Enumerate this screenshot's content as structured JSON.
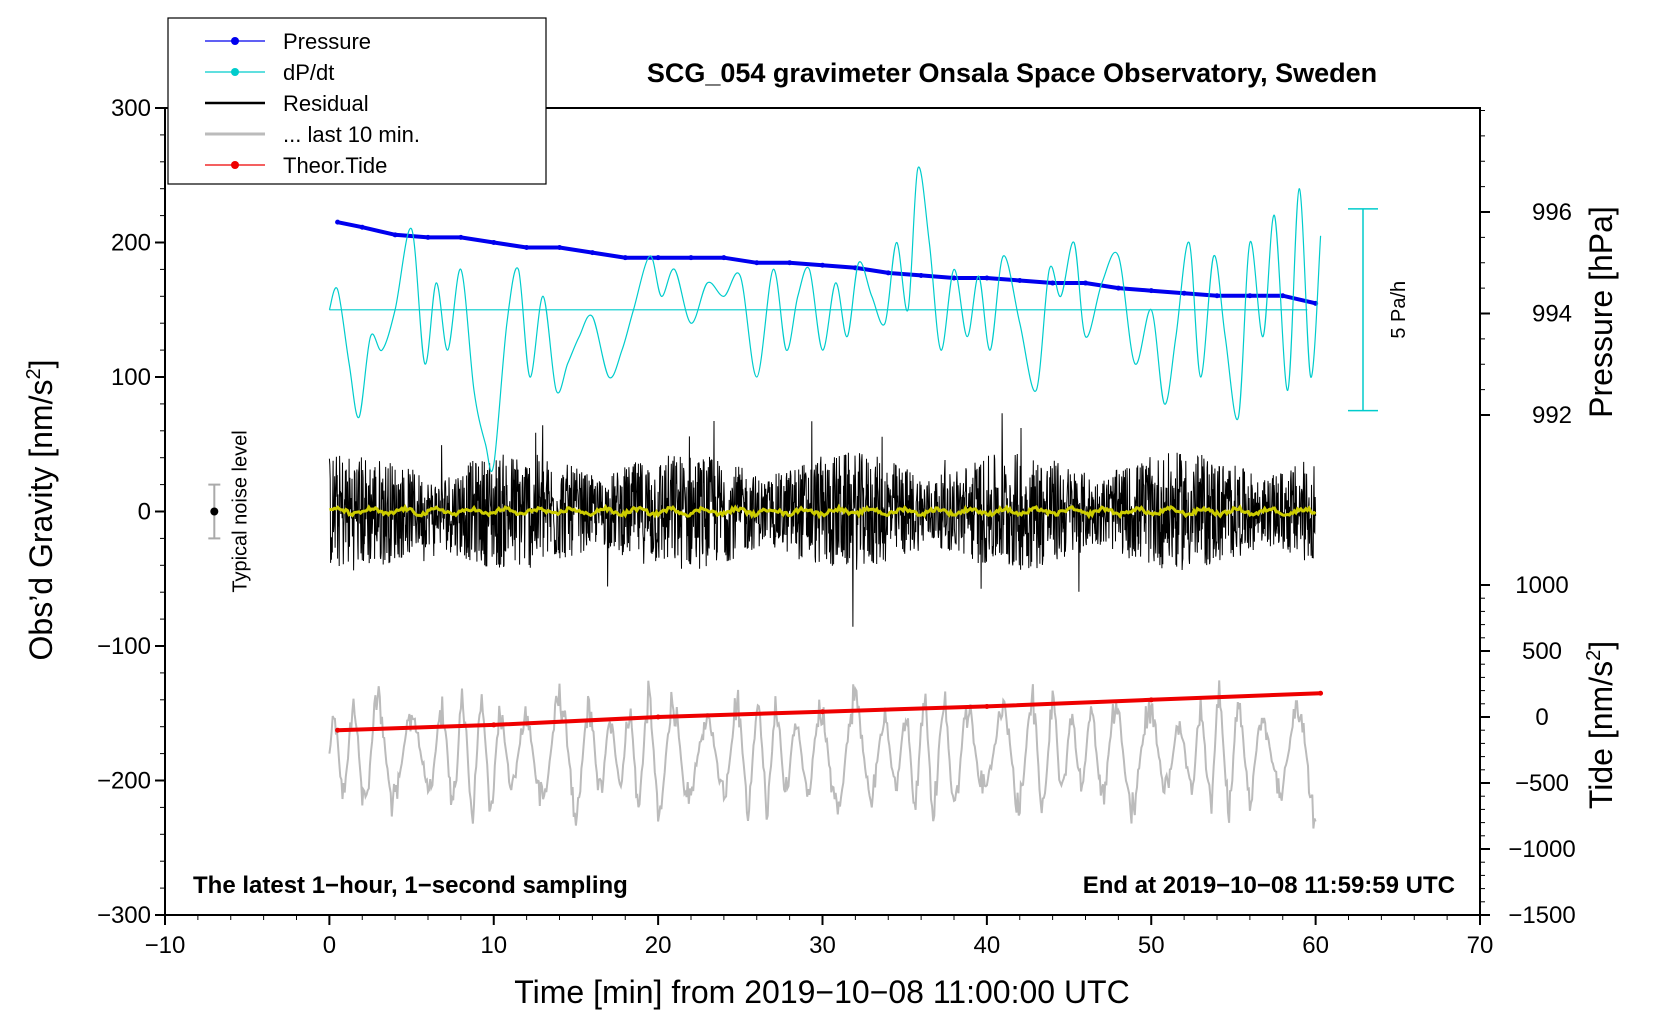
{
  "chart_data": {
    "type": "line",
    "title": "SCG_054 gravimeter Onsala Space Observatory, Sweden",
    "xlabel": "Time [min] from 2019−10−08 11:00:00 UTC",
    "ylabel_left": "Obs’d Gravity [nm/s",
    "ylabel_left_sup": "2",
    "ylabel_left_close": "]",
    "ylabel_right_pressure": "Pressure [hPa]",
    "ylabel_right_tide": "Tide [nm/s",
    "ylabel_right_tide_sup": "2",
    "ylabel_right_tide_close": "]",
    "xlim": [
      -10,
      70
    ],
    "ylim_left": [
      -300,
      300
    ],
    "ylim_pressure": [
      991,
      998
    ],
    "ylim_tide": [
      -1500,
      1000
    ],
    "x_ticks": [
      "−10",
      "0",
      "10",
      "20",
      "30",
      "40",
      "50",
      "60",
      "70"
    ],
    "x_tick_values": [
      -10,
      0,
      10,
      20,
      30,
      40,
      50,
      60,
      70
    ],
    "y_left_ticks": [
      "300",
      "200",
      "100",
      "0",
      "−100",
      "−200",
      "−300"
    ],
    "y_left_tick_values": [
      300,
      200,
      100,
      0,
      -100,
      -200,
      -300
    ],
    "y_pressure_ticks": [
      "996",
      "994",
      "992"
    ],
    "y_pressure_tick_values": [
      996,
      994,
      992
    ],
    "y_tide_ticks": [
      "1000",
      "500",
      "0",
      "−500",
      "−1000",
      "−1500"
    ],
    "y_tide_tick_values": [
      1000,
      500,
      0,
      -500,
      -1000,
      -1500
    ],
    "legend": [
      {
        "label": "Pressure",
        "color": "#0000ee",
        "marker": true
      },
      {
        "label": "dP/dt",
        "color": "#00cccc",
        "marker": true
      },
      {
        "label": "Residual",
        "color": "#000000",
        "marker": false
      },
      {
        "label": "... last 10 min.",
        "color": "#bbbbbb",
        "marker": false
      },
      {
        "label": "Theor.Tide",
        "color": "#ee0000",
        "marker": true
      }
    ],
    "series": [
      {
        "name": "Pressure",
        "axis": "pressure",
        "color": "#0000ee",
        "x": [
          0.5,
          2,
          4,
          6,
          8,
          10,
          12,
          14,
          16,
          18,
          20,
          22,
          24,
          26,
          28,
          30,
          32,
          34,
          36,
          38,
          40,
          42,
          44,
          46,
          48,
          50,
          52,
          54,
          56,
          58,
          60
        ],
        "values": [
          995.8,
          995.7,
          995.55,
          995.5,
          995.5,
          995.4,
          995.3,
          995.3,
          995.2,
          995.1,
          995.1,
          995.1,
          995.1,
          995.0,
          995.0,
          994.95,
          994.9,
          994.8,
          994.75,
          994.7,
          994.7,
          994.65,
          994.6,
          994.6,
          994.5,
          994.45,
          994.4,
          994.35,
          994.35,
          994.35,
          994.2
        ]
      },
      {
        "name": "dP/dt",
        "axis": "left",
        "color": "#00cccc",
        "x": [
          0,
          0.5,
          1.2,
          1.8,
          2.5,
          3.2,
          4,
          5,
          5.8,
          6.5,
          7.2,
          8,
          8.8,
          9.5,
          10,
          10.8,
          11.5,
          12.2,
          13,
          13.8,
          14.5,
          15.2,
          16,
          17,
          17.8,
          18.5,
          19.5,
          20.2,
          21,
          22,
          23,
          24,
          25,
          26,
          27,
          27.8,
          28.5,
          29.2,
          30,
          30.8,
          31.5,
          32.2,
          33,
          33.8,
          34.5,
          35.2,
          35.8,
          36.5,
          37.2,
          38,
          38.8,
          39.5,
          40.2,
          41,
          42,
          43,
          43.8,
          44.5,
          45.3,
          46,
          47,
          48,
          49,
          50,
          50.8,
          51.5,
          52.3,
          53,
          53.8,
          54.5,
          55.3,
          56,
          56.8,
          57.5,
          58.3,
          59,
          59.7,
          60.3
        ],
        "values": [
          150,
          165,
          110,
          70,
          130,
          120,
          150,
          210,
          110,
          170,
          120,
          180,
          90,
          50,
          35,
          140,
          180,
          100,
          160,
          90,
          110,
          130,
          145,
          100,
          120,
          150,
          190,
          160,
          180,
          140,
          170,
          160,
          175,
          100,
          180,
          120,
          160,
          180,
          120,
          170,
          130,
          185,
          160,
          140,
          200,
          150,
          255,
          200,
          120,
          180,
          130,
          175,
          120,
          190,
          140,
          90,
          180,
          160,
          200,
          130,
          170,
          190,
          110,
          150,
          80,
          130,
          200,
          100,
          190,
          130,
          70,
          200,
          130,
          220,
          90,
          240,
          100,
          205
        ]
      },
      {
        "name": "dP/dt reference level",
        "axis": "left",
        "color": "#00cccc",
        "x": [
          0,
          59.5
        ],
        "values": [
          150,
          150
        ]
      },
      {
        "name": "Theor.Tide",
        "axis": "tide",
        "color": "#ee0000",
        "x": [
          0.5,
          10,
          20,
          30,
          40,
          50,
          60.3
        ],
        "values": [
          -100,
          -60,
          0,
          40,
          80,
          130,
          180
        ]
      }
    ],
    "residual_envelope": {
      "x_range": [
        0,
        60
      ],
      "center": 0,
      "typical_amplitude": 40,
      "max_amplitude": 100
    },
    "last10_envelope": {
      "x_range": [
        0,
        60
      ],
      "center": -180,
      "typical_amplitude": 40,
      "max_amplitude": 90
    },
    "scale_bar": {
      "label": "5 Pa/h",
      "top": 225,
      "bottom": 75
    },
    "noise_marker": {
      "label": "Typical noise level",
      "x": -7,
      "center": 0,
      "half_range": 20
    },
    "note_left": "The latest 1−hour, 1−second sampling",
    "note_right": "End at 2019−10−08 11:59:59 UTC"
  }
}
